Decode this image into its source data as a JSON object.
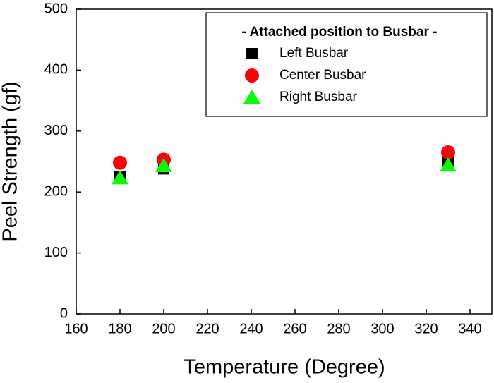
{
  "chart_data": {
    "type": "scatter",
    "x_label": "Temperature (Degree)",
    "y_label": "Peel Strength (gf)",
    "x": [
      180,
      200,
      330
    ],
    "series": [
      {
        "name": "Left Busbar",
        "color": "#000000",
        "marker": "square",
        "values": [
          225,
          238,
          248
        ]
      },
      {
        "name": "Center Busbar",
        "color": "#ff0000",
        "marker": "circle",
        "values": [
          248,
          253,
          265
        ]
      },
      {
        "name": "Right Busbar",
        "color": "#00ff00",
        "marker": "triangle",
        "values": [
          223,
          243,
          244
        ]
      }
    ],
    "legend_title": "- Attached position to Busbar -",
    "legend": "upper right",
    "xlim": [
      160,
      350
    ],
    "xticks": [
      160,
      180,
      200,
      220,
      240,
      260,
      280,
      300,
      320,
      340
    ],
    "ylim": [
      0,
      500
    ],
    "yticks": [
      0,
      100,
      200,
      300,
      400,
      500
    ]
  }
}
